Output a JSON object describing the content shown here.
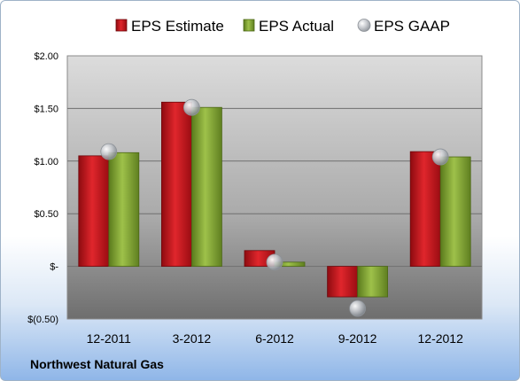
{
  "company": "Northwest Natural Gas",
  "chart_data": {
    "type": "bar",
    "title": "",
    "xlabel": "",
    "ylabel": "",
    "categories": [
      "12-2011",
      "3-2012",
      "6-2012",
      "9-2012",
      "12-2012"
    ],
    "ylim": [
      -0.5,
      2.0
    ],
    "yticks": [
      -0.5,
      0,
      0.5,
      1.0,
      1.5,
      2.0
    ],
    "ytick_labels": [
      "$(0.50)",
      "$-",
      "$0.50",
      "$1.00",
      "$1.50",
      "$2.00"
    ],
    "grid": true,
    "legend_position": "top",
    "series": [
      {
        "name": "EPS Estimate",
        "kind": "bar",
        "color": "#c0151b",
        "values": [
          1.05,
          1.56,
          0.15,
          -0.29,
          1.09
        ]
      },
      {
        "name": "EPS Actual",
        "kind": "bar",
        "color": "#7a9c2f",
        "values": [
          1.08,
          1.51,
          0.04,
          -0.29,
          1.04
        ]
      },
      {
        "name": "EPS GAAP",
        "kind": "marker",
        "color": "#b0b4ba",
        "values": [
          1.09,
          1.51,
          0.04,
          -0.4,
          1.04
        ]
      }
    ]
  }
}
